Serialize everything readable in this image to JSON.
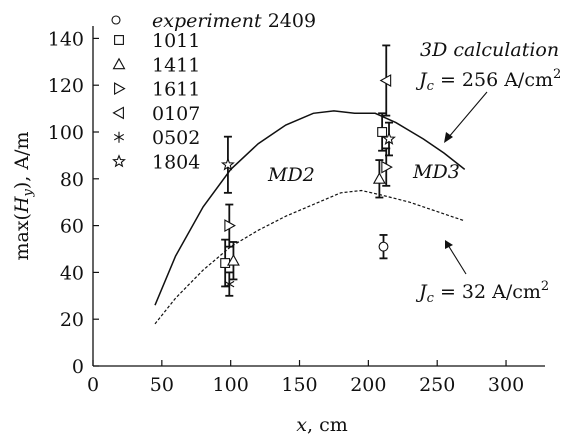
{
  "chart_data": {
    "type": "scatter",
    "xlabel": "x, cm",
    "ylabel": "max(H_y), A/m",
    "xlim": [
      0,
      320
    ],
    "ylim": [
      0,
      145
    ],
    "xticks": [
      0,
      50,
      100,
      150,
      200,
      250,
      300
    ],
    "yticks": [
      0,
      20,
      40,
      60,
      80,
      100,
      120,
      140
    ],
    "grid": false,
    "legend_position": "top-left",
    "legend_title": "experiment",
    "series": [
      {
        "name": "2409",
        "marker": "circle",
        "points": [
          {
            "x": 211,
            "y": 51,
            "err": 5
          }
        ]
      },
      {
        "name": "1011",
        "marker": "square",
        "points": [
          {
            "x": 96,
            "y": 44,
            "err": 10
          },
          {
            "x": 210,
            "y": 100,
            "err": 8
          }
        ]
      },
      {
        "name": "1411",
        "marker": "triangle-up",
        "points": [
          {
            "x": 102,
            "y": 45,
            "err": 8
          },
          {
            "x": 208,
            "y": 80,
            "err": 8
          }
        ]
      },
      {
        "name": "1611",
        "marker": "triangle-right",
        "points": [
          {
            "x": 99,
            "y": 60,
            "err": 9
          },
          {
            "x": 213,
            "y": 85,
            "err": 8
          }
        ]
      },
      {
        "name": "0107",
        "marker": "triangle-left",
        "points": [
          {
            "x": 213,
            "y": 122,
            "err": 15
          }
        ]
      },
      {
        "name": "0502",
        "marker": "asterisk",
        "points": [
          {
            "x": 99,
            "y": 35,
            "err": 5
          }
        ]
      },
      {
        "name": "1804",
        "marker": "star",
        "points": [
          {
            "x": 98,
            "y": 86,
            "err": 12
          },
          {
            "x": 215,
            "y": 97,
            "err": 7
          }
        ]
      }
    ],
    "curves": [
      {
        "name": "J_c = 256 A/cm2",
        "style": "solid",
        "x": [
          45,
          60,
          80,
          100,
          120,
          140,
          160,
          175,
          190,
          205,
          220,
          240,
          255,
          270
        ],
        "y": [
          26,
          47,
          68,
          84,
          95,
          103,
          108,
          109,
          108,
          108,
          104,
          97,
          91,
          84
        ]
      },
      {
        "name": "J_c = 32 A/cm2",
        "style": "dashed",
        "x": [
          45,
          60,
          80,
          100,
          120,
          140,
          160,
          180,
          195,
          210,
          230,
          250,
          270
        ],
        "y": [
          18,
          29,
          41,
          51,
          58,
          64,
          69,
          74,
          75,
          73,
          70,
          66,
          62
        ]
      }
    ],
    "annotations": {
      "calc_title": "3D calculation",
      "jc_high": "J_c = 256 A/cm²",
      "jc_low": "J_c = 32 A/cm²",
      "md2": "MD2",
      "md3": "MD3"
    }
  }
}
